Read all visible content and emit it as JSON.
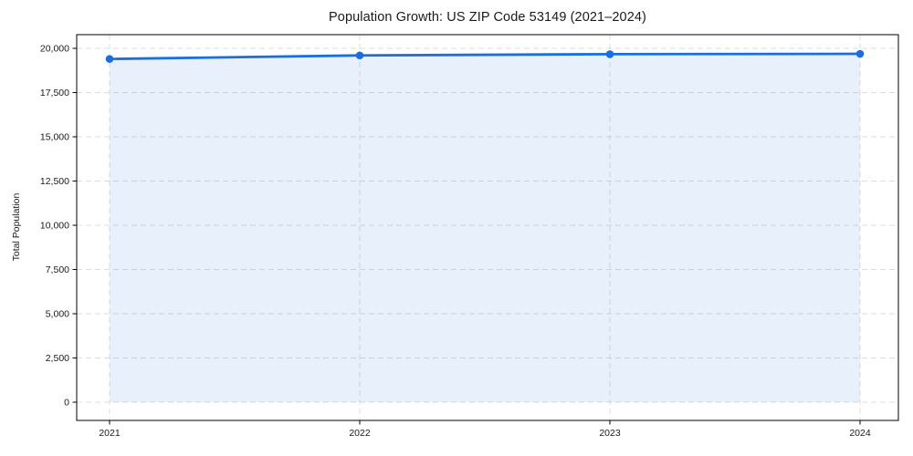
{
  "chart_data": {
    "type": "line",
    "title": "Population Growth: US ZIP Code 53149 (2021–2024)",
    "xlabel": "",
    "ylabel": "Total Population",
    "x": [
      "2021",
      "2022",
      "2023",
      "2024"
    ],
    "series": [
      {
        "name": "Total Population",
        "values": [
          19400,
          19600,
          19670,
          19690
        ]
      }
    ],
    "ylim": [
      0,
      20000
    ],
    "yticks": [
      0,
      2500,
      5000,
      7500,
      10000,
      12500,
      15000,
      17500,
      20000
    ],
    "grid": true,
    "grid_style": "dashed",
    "legend": "none",
    "line_color": "#1a6fe0",
    "marker": "circle",
    "marker_color": "#1a6fe0",
    "fill_under_line": true,
    "fill_color": "rgba(26, 111, 224, 0.10)",
    "grid_color": "#dcdcdc",
    "spine_color": "#000000"
  }
}
